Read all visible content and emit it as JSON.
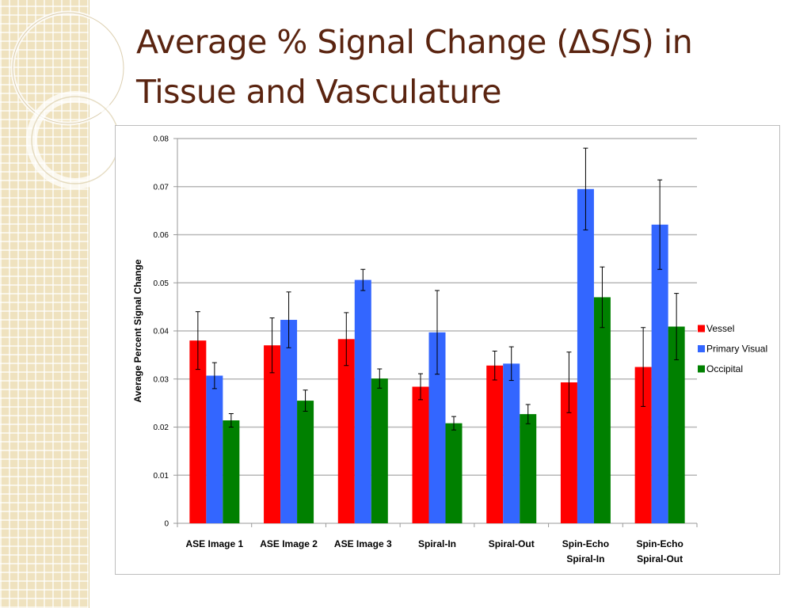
{
  "slide": {
    "title_line1": "Average % Signal Change (ΔS/S) in",
    "title_line2": "Tissue and Vasculature"
  },
  "chart_data": {
    "type": "bar",
    "title": "",
    "xlabel": "",
    "ylabel": "Average Percent Signal Change",
    "ylim": [
      0,
      0.08
    ],
    "yticks": [
      "0",
      "0.01",
      "0.02",
      "0.03",
      "0.04",
      "0.05",
      "0.06",
      "0.07",
      "0.08"
    ],
    "grid": true,
    "legend_position": "right",
    "categories": [
      [
        "ASE Image 1"
      ],
      [
        "ASE Image 2"
      ],
      [
        "ASE Image 3"
      ],
      [
        "Spiral-In"
      ],
      [
        "Spiral-Out"
      ],
      [
        "Spin-Echo",
        "Spiral-In"
      ],
      [
        "Spin-Echo",
        "Spiral-Out"
      ]
    ],
    "series": [
      {
        "name": "Vessel",
        "color": "#ff0000",
        "values": [
          0.038,
          0.037,
          0.0383,
          0.0284,
          0.0328,
          0.0293,
          0.0325
        ],
        "errors": [
          0.006,
          0.0057,
          0.0055,
          0.0027,
          0.003,
          0.0063,
          0.0082
        ]
      },
      {
        "name": "Primary Visual",
        "color": "#3366ff",
        "values": [
          0.0307,
          0.0423,
          0.0506,
          0.0397,
          0.0332,
          0.0695,
          0.0621
        ],
        "errors": [
          0.0027,
          0.0058,
          0.0022,
          0.0087,
          0.0035,
          0.0085,
          0.0093
        ]
      },
      {
        "name": "Occipital",
        "color": "#008000",
        "values": [
          0.0214,
          0.0255,
          0.0301,
          0.0208,
          0.0227,
          0.047,
          0.0409
        ],
        "errors": [
          0.0014,
          0.0022,
          0.002,
          0.0014,
          0.002,
          0.0063,
          0.0069
        ]
      }
    ]
  }
}
